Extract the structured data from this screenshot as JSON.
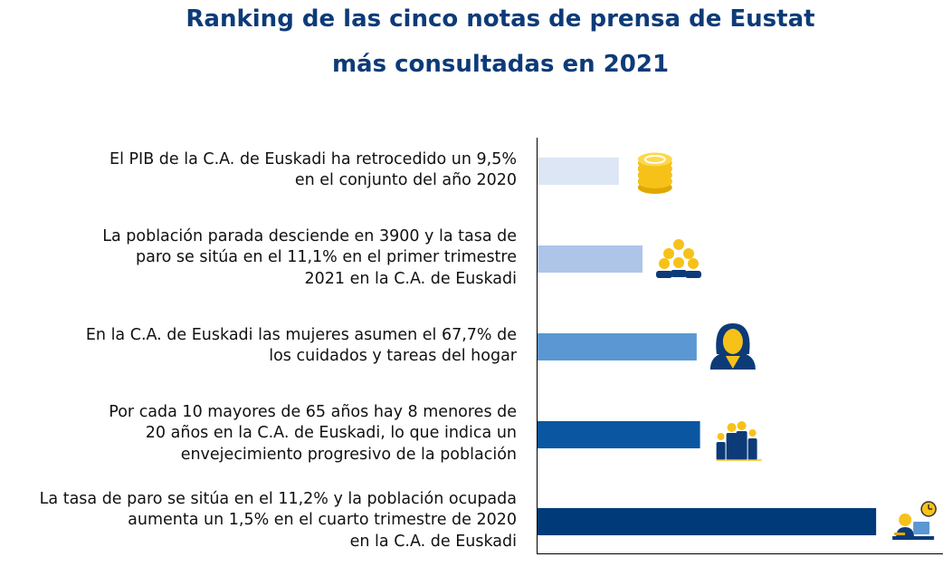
{
  "chart_data": {
    "type": "bar",
    "orientation": "horizontal",
    "title_line1": "Ranking de las cinco notas de prensa de Eustat",
    "title_line2": "más consultadas en 2021",
    "xlabel": "",
    "ylabel": "",
    "categories": [
      [
        "El PIB de la C.A. de Euskadi ha retrocedido un 9,5%",
        "en el conjunto del año 2020"
      ],
      [
        "La población parada desciende en 3900 y la tasa de",
        "paro se sitúa en el 11,1% en el primer trimestre",
        "2021 en la C.A. de Euskadi"
      ],
      [
        "En la C.A. de Euskadi las mujeres asumen el 67,7% de",
        "los cuidados y tareas del hogar"
      ],
      [
        "Por cada 10 mayores de 65 años hay 8 menores de",
        "20 años en la C.A. de Euskadi, lo que indica un",
        "envejecimiento progresivo de la población"
      ],
      [
        "La tasa de paro se sitúa en el 11,2% y la población ocupada",
        "aumenta un 1,5% en el cuarto trimestre de 2020",
        "en la C.A. de Euskadi"
      ]
    ],
    "values": [
      24,
      31,
      47,
      48,
      100
    ],
    "xlim": [
      0,
      120
    ],
    "colors": [
      "#dce6f5",
      "#aec5e8",
      "#5b97d2",
      "#0a56a0",
      "#003a78"
    ],
    "icons": [
      "coins-icon",
      "people-group-icon",
      "woman-icon",
      "family-icon",
      "worker-clock-icon"
    ],
    "grid": false,
    "legend": "none"
  }
}
